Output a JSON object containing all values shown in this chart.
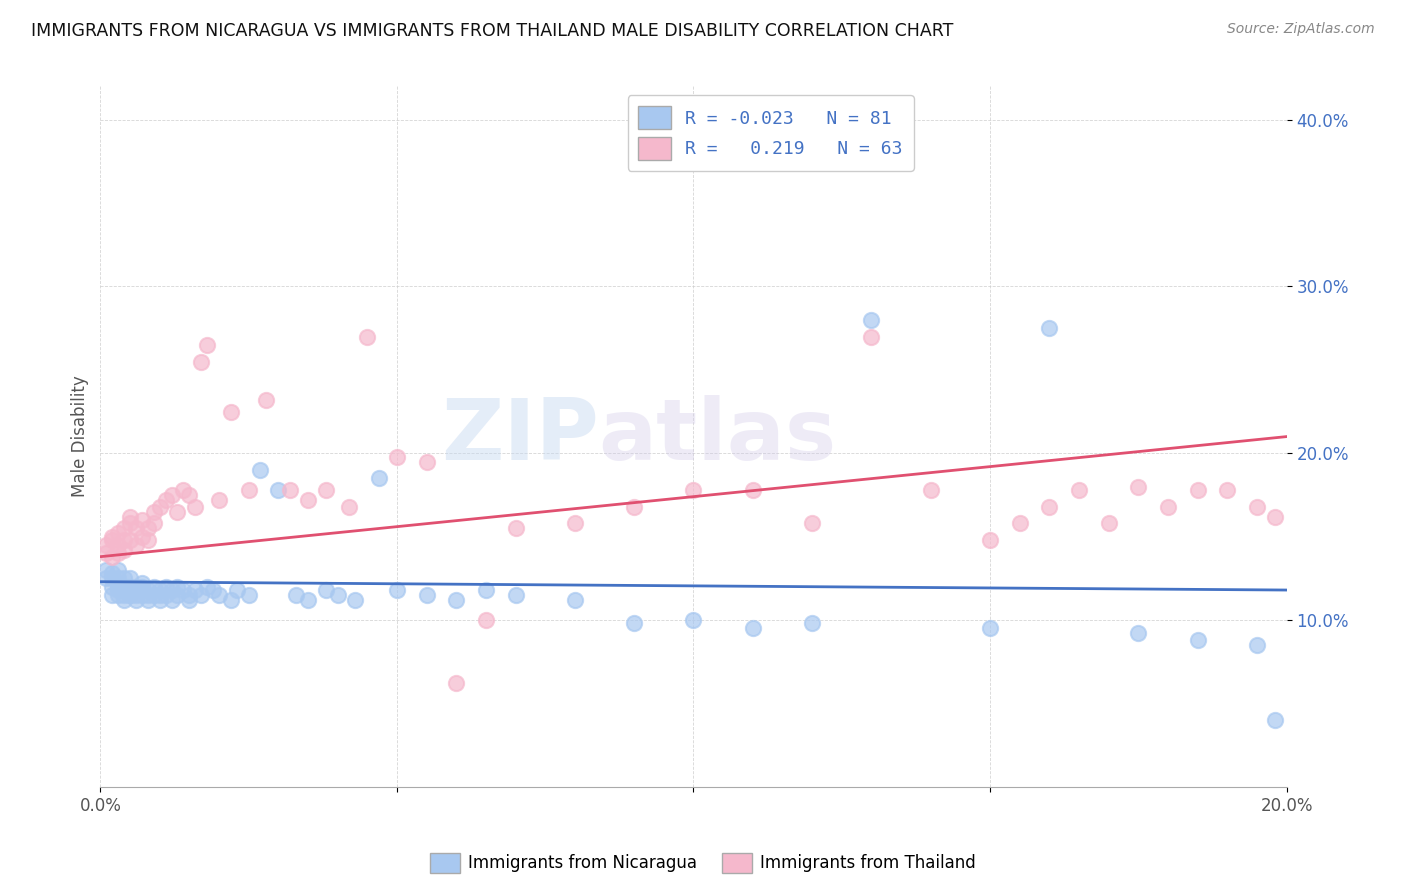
{
  "title": "IMMIGRANTS FROM NICARAGUA VS IMMIGRANTS FROM THAILAND MALE DISABILITY CORRELATION CHART",
  "source": "Source: ZipAtlas.com",
  "ylabel": "Male Disability",
  "xlim": [
    0.0,
    0.2
  ],
  "ylim": [
    0.0,
    0.42
  ],
  "x_ticks": [
    0.0,
    0.05,
    0.1,
    0.15,
    0.2
  ],
  "x_tick_labels": [
    "0.0%",
    "",
    "",
    "",
    "20.0%"
  ],
  "y_ticks": [
    0.1,
    0.2,
    0.3,
    0.4
  ],
  "y_tick_labels": [
    "10.0%",
    "20.0%",
    "30.0%",
    "40.0%"
  ],
  "nicaragua_color": "#a8c8f0",
  "thailand_color": "#f5b8cc",
  "nicaragua_line_color": "#4472c4",
  "thailand_line_color": "#e05070",
  "legend_R_nicaragua": "-0.023",
  "legend_N_nicaragua": "81",
  "legend_R_thailand": "0.219",
  "legend_N_thailand": "63",
  "watermark_zip": "ZIP",
  "watermark_atlas": "atlas",
  "nicaragua_x": [
    0.001,
    0.001,
    0.002,
    0.002,
    0.002,
    0.002,
    0.003,
    0.003,
    0.003,
    0.003,
    0.003,
    0.003,
    0.004,
    0.004,
    0.004,
    0.004,
    0.004,
    0.005,
    0.005,
    0.005,
    0.005,
    0.005,
    0.005,
    0.006,
    0.006,
    0.006,
    0.006,
    0.007,
    0.007,
    0.007,
    0.007,
    0.008,
    0.008,
    0.008,
    0.009,
    0.009,
    0.01,
    0.01,
    0.01,
    0.011,
    0.011,
    0.012,
    0.012,
    0.013,
    0.013,
    0.014,
    0.015,
    0.015,
    0.016,
    0.017,
    0.018,
    0.019,
    0.02,
    0.022,
    0.023,
    0.025,
    0.027,
    0.03,
    0.033,
    0.035,
    0.038,
    0.04,
    0.043,
    0.047,
    0.05,
    0.055,
    0.06,
    0.065,
    0.07,
    0.08,
    0.09,
    0.1,
    0.11,
    0.12,
    0.13,
    0.15,
    0.16,
    0.175,
    0.185,
    0.195,
    0.198
  ],
  "nicaragua_y": [
    0.125,
    0.13,
    0.12,
    0.115,
    0.125,
    0.128,
    0.118,
    0.122,
    0.115,
    0.13,
    0.12,
    0.125,
    0.115,
    0.118,
    0.12,
    0.112,
    0.125,
    0.118,
    0.115,
    0.12,
    0.125,
    0.115,
    0.118,
    0.12,
    0.115,
    0.118,
    0.112,
    0.12,
    0.115,
    0.118,
    0.122,
    0.115,
    0.118,
    0.112,
    0.12,
    0.115,
    0.118,
    0.112,
    0.115,
    0.12,
    0.115,
    0.118,
    0.112,
    0.115,
    0.12,
    0.118,
    0.115,
    0.112,
    0.118,
    0.115,
    0.12,
    0.118,
    0.115,
    0.112,
    0.118,
    0.115,
    0.19,
    0.178,
    0.115,
    0.112,
    0.118,
    0.115,
    0.112,
    0.185,
    0.118,
    0.115,
    0.112,
    0.118,
    0.115,
    0.112,
    0.098,
    0.1,
    0.095,
    0.098,
    0.28,
    0.095,
    0.275,
    0.092,
    0.088,
    0.085,
    0.04
  ],
  "thailand_x": [
    0.001,
    0.001,
    0.002,
    0.002,
    0.002,
    0.003,
    0.003,
    0.003,
    0.004,
    0.004,
    0.004,
    0.005,
    0.005,
    0.005,
    0.006,
    0.006,
    0.007,
    0.007,
    0.008,
    0.008,
    0.009,
    0.009,
    0.01,
    0.011,
    0.012,
    0.013,
    0.014,
    0.015,
    0.016,
    0.017,
    0.018,
    0.02,
    0.022,
    0.025,
    0.028,
    0.032,
    0.035,
    0.038,
    0.042,
    0.045,
    0.05,
    0.055,
    0.06,
    0.065,
    0.07,
    0.08,
    0.09,
    0.1,
    0.11,
    0.12,
    0.13,
    0.14,
    0.15,
    0.155,
    0.16,
    0.165,
    0.17,
    0.175,
    0.18,
    0.185,
    0.19,
    0.195,
    0.198
  ],
  "thailand_y": [
    0.14,
    0.145,
    0.148,
    0.138,
    0.15,
    0.145,
    0.152,
    0.14,
    0.148,
    0.155,
    0.142,
    0.158,
    0.148,
    0.162,
    0.145,
    0.155,
    0.15,
    0.16,
    0.155,
    0.148,
    0.165,
    0.158,
    0.168,
    0.172,
    0.175,
    0.165,
    0.178,
    0.175,
    0.168,
    0.255,
    0.265,
    0.172,
    0.225,
    0.178,
    0.232,
    0.178,
    0.172,
    0.178,
    0.168,
    0.27,
    0.198,
    0.195,
    0.062,
    0.1,
    0.155,
    0.158,
    0.168,
    0.178,
    0.178,
    0.158,
    0.27,
    0.178,
    0.148,
    0.158,
    0.168,
    0.178,
    0.158,
    0.18,
    0.168,
    0.178,
    0.178,
    0.168,
    0.162
  ]
}
